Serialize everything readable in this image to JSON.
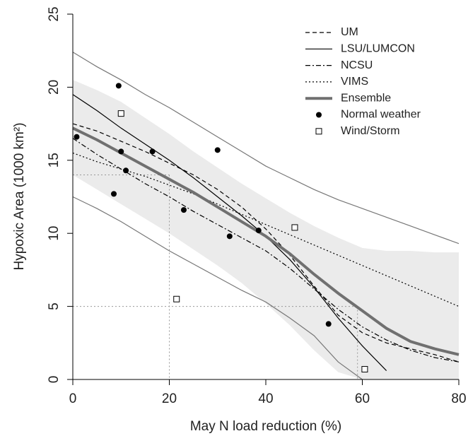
{
  "chart_data": {
    "type": "line",
    "xlabel": "May N load reduction (%)",
    "ylabel": "Hypoxic Area (1000 km²)",
    "xlim": [
      0,
      80
    ],
    "xticks": [
      0,
      20,
      40,
      60,
      80
    ],
    "ylim": [
      0,
      25
    ],
    "yticks": [
      0,
      5,
      10,
      15,
      20,
      25
    ],
    "legend": "top-right",
    "x": [
      0,
      5,
      10,
      15,
      20,
      25,
      30,
      35,
      40,
      45,
      50,
      55,
      60,
      65,
      70,
      75,
      80
    ],
    "band": {
      "color": "#ebebeb",
      "upper": [
        20.5,
        19.8,
        19.0,
        17.9,
        16.8,
        15.6,
        14.5,
        13.4,
        12.4,
        11.4,
        10.5,
        9.7,
        9.0,
        8.8,
        8.8,
        8.7,
        8.7
      ],
      "lower": [
        14.0,
        13.0,
        12.0,
        11.0,
        10.0,
        8.9,
        7.8,
        6.6,
        5.2,
        3.7,
        2.0,
        0.5,
        0,
        0,
        0,
        0,
        0
      ]
    },
    "bounds": {
      "color": "#777777",
      "upper": [
        22.4,
        21.4,
        20.5,
        19.5,
        18.6,
        17.6,
        16.6,
        15.6,
        14.6,
        13.8,
        13.0,
        12.3,
        11.7,
        11.1,
        10.5,
        9.9,
        9.3
      ],
      "lower": [
        12.5,
        11.7,
        10.8,
        9.8,
        8.8,
        7.9,
        7.0,
        6.1,
        5.3,
        4.2,
        3.0,
        1.2,
        0,
        null,
        null,
        null,
        null
      ]
    },
    "reference_lines": [
      {
        "x": 20,
        "y": 14
      },
      {
        "x": 59,
        "y": 5
      }
    ],
    "series": [
      {
        "name": "UM",
        "color": "#000000",
        "dash": "6 4",
        "width": 1.2,
        "values": [
          17.5,
          17.0,
          16.3,
          15.6,
          14.8,
          14.0,
          13.0,
          11.8,
          10.3,
          8.5,
          6.4,
          4.4,
          3.2,
          2.5,
          2.1,
          1.7,
          1.2
        ]
      },
      {
        "name": "LSU/LUMCON",
        "color": "#000000",
        "dash": "none",
        "width": 1.2,
        "values": [
          19.5,
          18.4,
          17.2,
          16.1,
          15.0,
          13.8,
          12.5,
          11.2,
          9.8,
          8.2,
          6.3,
          4.2,
          2.3,
          0.6,
          null,
          null,
          null
        ]
      },
      {
        "name": "NCSU",
        "color": "#000000",
        "dash": "7 3 2 3",
        "width": 1.2,
        "values": [
          16.5,
          15.4,
          14.4,
          13.4,
          12.5,
          11.5,
          10.6,
          9.7,
          8.8,
          7.6,
          6.2,
          4.8,
          3.6,
          2.7,
          2.0,
          1.5,
          1.2
        ]
      },
      {
        "name": "VIMS",
        "color": "#000000",
        "dash": "2 3",
        "width": 1.2,
        "values": [
          15.5,
          14.9,
          14.4,
          13.9,
          13.3,
          12.7,
          12.0,
          11.3,
          10.6,
          9.9,
          9.2,
          8.5,
          7.8,
          7.1,
          6.4,
          5.7,
          5.0
        ]
      },
      {
        "name": "Ensemble",
        "color": "#707070",
        "dash": "none",
        "width": 4,
        "values": [
          17.2,
          16.4,
          15.5,
          14.6,
          13.7,
          12.8,
          11.8,
          10.8,
          9.8,
          8.6,
          7.2,
          5.9,
          4.7,
          3.5,
          2.6,
          2.1,
          1.7
        ]
      }
    ],
    "points": [
      {
        "name": "Normal weather",
        "marker": "dot",
        "color": "#000000",
        "x": [
          0.8,
          8.5,
          9.5,
          10,
          11,
          16.5,
          23,
          30,
          32.5,
          38.5,
          53
        ],
        "values": [
          16.6,
          12.7,
          20.1,
          15.6,
          14.3,
          15.6,
          11.6,
          15.7,
          9.8,
          10.2,
          3.8
        ]
      },
      {
        "name": "Wind/Storm",
        "marker": "square",
        "color": "#000000",
        "x": [
          10,
          21.5,
          46,
          60.5
        ],
        "values": [
          18.2,
          5.5,
          10.4,
          0.7
        ]
      }
    ]
  }
}
